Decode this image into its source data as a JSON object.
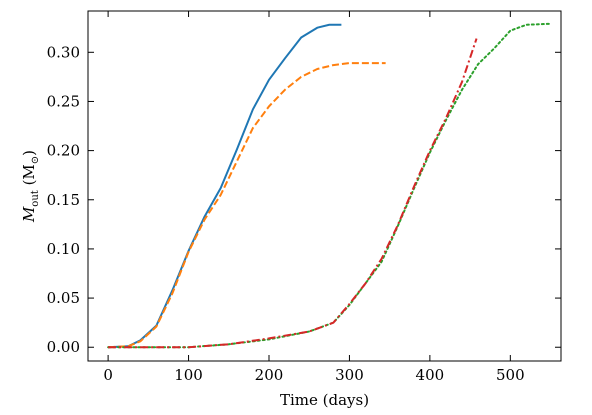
{
  "chart_data": {
    "type": "line",
    "xlabel": "Time (days)",
    "ylabel": {
      "main": "M",
      "sub": "out",
      "unit_open": " (M",
      "unit_sub": "⊙",
      "unit_close": ")"
    },
    "xlim": [
      -25,
      563
    ],
    "ylim": [
      -0.014,
      0.342
    ],
    "xticks": [
      0,
      100,
      200,
      300,
      400,
      500
    ],
    "xtick_labels": [
      "0",
      "100",
      "200",
      "300",
      "400",
      "500"
    ],
    "yticks": [
      0.0,
      0.05,
      0.1,
      0.15,
      0.2,
      0.25,
      0.3
    ],
    "ytick_labels": [
      "0.00",
      "0.05",
      "0.10",
      "0.15",
      "0.20",
      "0.25",
      "0.30"
    ],
    "grid": false,
    "series": [
      {
        "color": "#1f77b4",
        "dash": "solid",
        "x": [
          0,
          25,
          40,
          60,
          80,
          100,
          120,
          140,
          160,
          180,
          200,
          220,
          240,
          260,
          275,
          290
        ],
        "y": [
          0.0,
          0.001,
          0.007,
          0.022,
          0.058,
          0.098,
          0.133,
          0.162,
          0.201,
          0.242,
          0.272,
          0.294,
          0.315,
          0.325,
          0.328,
          0.328
        ]
      },
      {
        "color": "#ff7f0e",
        "dash": "dashed",
        "x": [
          0,
          25,
          40,
          60,
          80,
          100,
          120,
          140,
          160,
          180,
          200,
          220,
          240,
          260,
          280,
          300,
          320,
          345
        ],
        "y": [
          0.0,
          0.001,
          0.006,
          0.021,
          0.055,
          0.097,
          0.13,
          0.155,
          0.189,
          0.223,
          0.245,
          0.262,
          0.275,
          0.283,
          0.287,
          0.289,
          0.289,
          0.289
        ]
      },
      {
        "color": "#2ca02c",
        "dash": "dotted",
        "x": [
          0,
          100,
          150,
          200,
          250,
          280,
          300,
          320,
          340,
          360,
          380,
          400,
          420,
          440,
          460,
          480,
          500,
          520,
          550
        ],
        "y": [
          0.0,
          0.0,
          0.003,
          0.008,
          0.016,
          0.025,
          0.043,
          0.065,
          0.087,
          0.123,
          0.161,
          0.198,
          0.231,
          0.262,
          0.288,
          0.304,
          0.322,
          0.328,
          0.329
        ]
      },
      {
        "color": "#d62728",
        "dash": "dashdot",
        "x": [
          0,
          100,
          150,
          200,
          250,
          280,
          300,
          320,
          340,
          360,
          380,
          400,
          420,
          440,
          458
        ],
        "y": [
          0.0,
          0.0,
          0.003,
          0.009,
          0.016,
          0.025,
          0.044,
          0.065,
          0.09,
          0.124,
          0.163,
          0.2,
          0.233,
          0.27,
          0.314
        ]
      }
    ]
  }
}
